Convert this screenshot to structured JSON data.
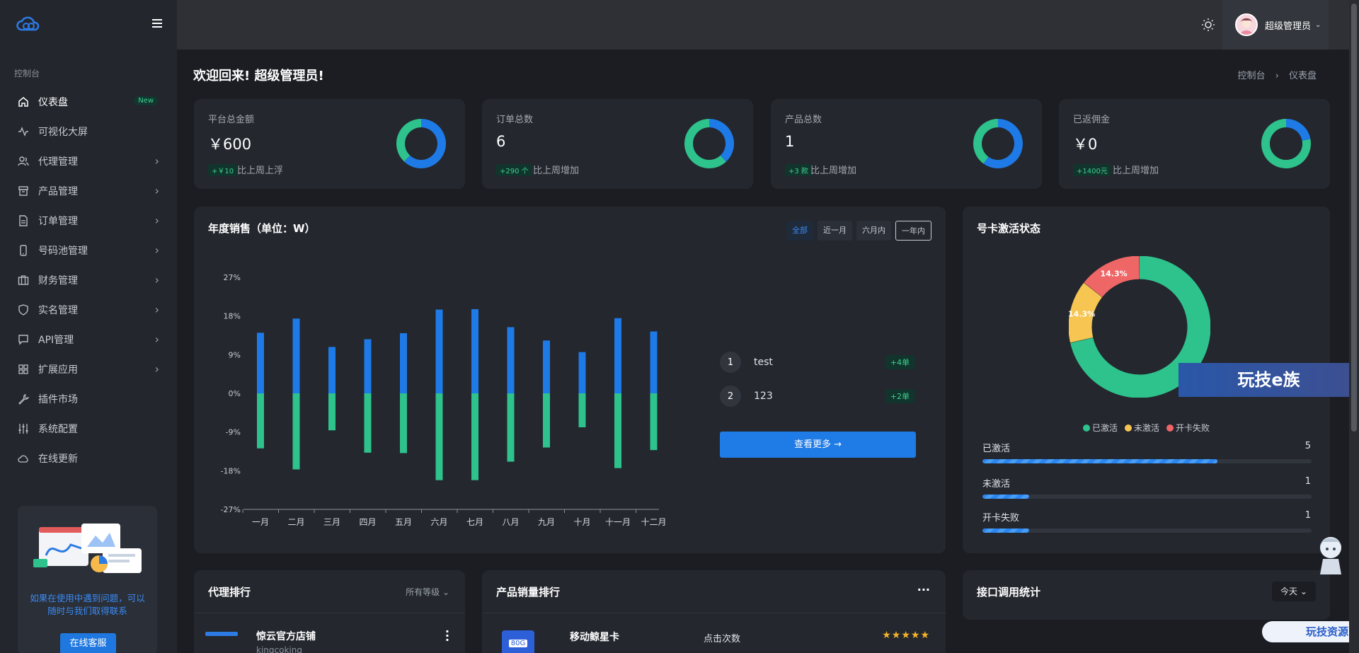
{
  "sidebar": {
    "section_label": "控制台",
    "items": [
      {
        "label": "仪表盘",
        "icon": "home-icon",
        "badge": "New",
        "active": true
      },
      {
        "label": "可视化大屏",
        "icon": "pulse-icon"
      },
      {
        "label": "代理管理",
        "icon": "users-icon",
        "has_children": true
      },
      {
        "label": "产品管理",
        "icon": "archive-icon",
        "has_children": true
      },
      {
        "label": "订单管理",
        "icon": "file-icon",
        "has_children": true
      },
      {
        "label": "号码池管理",
        "icon": "phone-icon",
        "has_children": true
      },
      {
        "label": "财务管理",
        "icon": "briefcase-icon",
        "has_children": true
      },
      {
        "label": "实名管理",
        "icon": "shield-icon",
        "has_children": true
      },
      {
        "label": "API管理",
        "icon": "chat-icon",
        "has_children": true
      },
      {
        "label": "扩展应用",
        "icon": "grid-icon",
        "has_children": true
      },
      {
        "label": "插件市场",
        "icon": "wrench-icon"
      },
      {
        "label": "系统配置",
        "icon": "sliders-icon"
      },
      {
        "label": "在线更新",
        "icon": "cloud-icon"
      }
    ],
    "promo": {
      "text": "如果在使用中遇到问题，可以随时与我们取得联系",
      "button": "在线客服"
    }
  },
  "header": {
    "user_name": "超级管理员"
  },
  "page": {
    "title": "欢迎回来! 超级管理员!",
    "breadcrumb": [
      "控制台",
      "仪表盘"
    ]
  },
  "stats": [
    {
      "label": "平台总金额",
      "value": "￥600",
      "pill": "+￥10",
      "note": "比上周上浮",
      "ratio": 0.62
    },
    {
      "label": "订单总数",
      "value": "6",
      "pill": "+290 个",
      "note": "比上周增加",
      "ratio": 0.38
    },
    {
      "label": "产品总数",
      "value": "1",
      "pill": "+3 款",
      "note": "比上周增加",
      "ratio": 0.6
    },
    {
      "label": "已返佣金",
      "value": "￥0",
      "pill": "+1400元",
      "note": "比上周增加",
      "ratio": 0.22
    }
  ],
  "sales": {
    "title": "年度销售（单位：W）",
    "tabs": [
      "全部",
      "近一月",
      "六月内",
      "一年内"
    ],
    "ranking": [
      {
        "rank": "1",
        "name": "test",
        "pill": "+4单"
      },
      {
        "rank": "2",
        "name": "123",
        "pill": "+2单"
      }
    ],
    "more_button": "查看更多"
  },
  "activation": {
    "title": "号卡激活状态",
    "legend": [
      "已激活",
      "未激活",
      "开卡失败"
    ],
    "rows": [
      {
        "label": "已激活",
        "count": "5",
        "ratio": 0.714
      },
      {
        "label": "未激活",
        "count": "1",
        "ratio": 0.143
      },
      {
        "label": "开卡失败",
        "count": "1",
        "ratio": 0.143
      }
    ]
  },
  "bottom": {
    "agent_rank": {
      "title": "代理排行",
      "filter": "所有等级",
      "first_name": "惊云官方店铺",
      "first_sub": "kingcoking"
    },
    "product_rank": {
      "title": "产品销量排行",
      "first_name": "移动鲸星卡",
      "col": "点击次数",
      "badge": "80G"
    },
    "api_stats": {
      "title": "接口调用统计",
      "filter": "今天"
    }
  },
  "watermark": {
    "main": "玩技e族",
    "sub": "玩技资源"
  },
  "chart_data": [
    {
      "type": "bar",
      "title": "",
      "categories": [
        "一月",
        "二月",
        "三月",
        "四月",
        "五月",
        "六月",
        "七月",
        "八月",
        "九月",
        "十月",
        "十一月",
        "十二月"
      ],
      "series": [
        {
          "values": [
            14.1,
            17.4,
            10.8,
            12.6,
            14.0,
            19.5,
            19.6,
            15.4,
            12.3,
            9.6,
            17.5,
            14.4
          ],
          "color": "#1e7ae6"
        },
        {
          "values": [
            -12.8,
            -17.7,
            -8.6,
            -13.8,
            -13.9,
            -20.2,
            -20.2,
            -15.9,
            -12.6,
            -7.9,
            -17.4,
            -13.2
          ],
          "color": "#2ec28c"
        }
      ],
      "y_ticks": [
        "27%",
        "18%",
        "9%",
        "0%",
        "-9%",
        "-18%",
        "-27%"
      ],
      "ylim": [
        -27,
        27
      ]
    },
    {
      "type": "pie",
      "title": "",
      "categories": [
        "已激活",
        "未激活",
        "开卡失败"
      ],
      "values": [
        5,
        1,
        1
      ],
      "labels": [
        "",
        "14.3%",
        "14.3%"
      ],
      "colors": [
        "#2ec28c",
        "#f6c552",
        "#ef6666"
      ]
    }
  ]
}
